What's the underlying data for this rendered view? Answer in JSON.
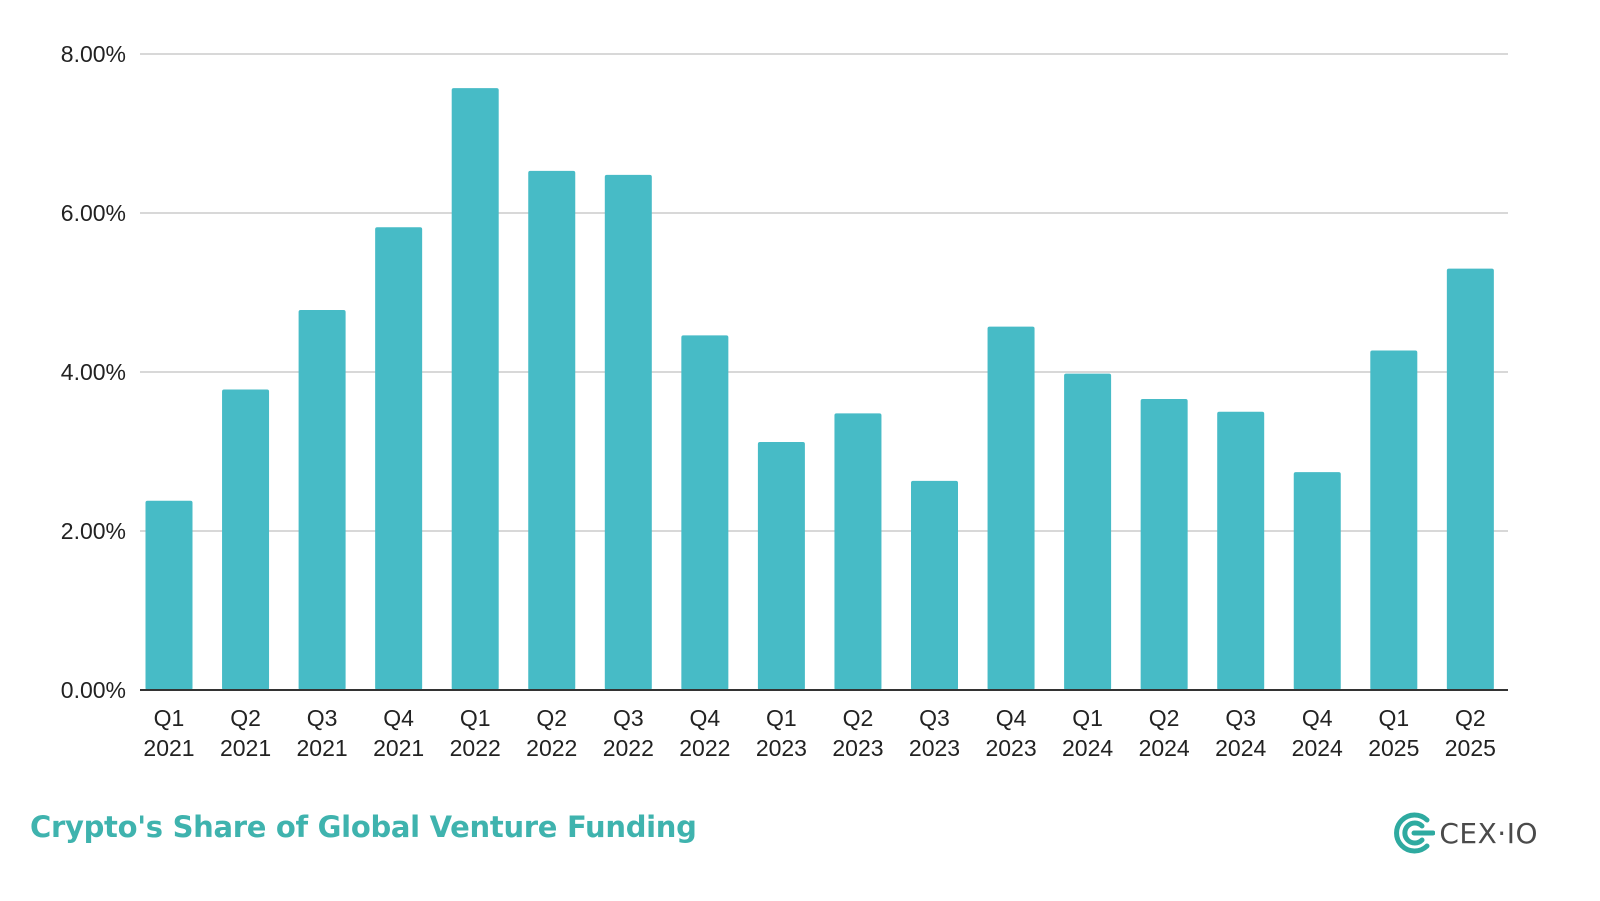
{
  "colors": {
    "bar": "#47bbc6",
    "title": "#3fb3ae",
    "brand_mark": "#2eaaa0",
    "grid": "#cccccc",
    "axis": "#333333"
  },
  "chart_data": {
    "type": "bar",
    "title": "",
    "xlabel": "",
    "ylabel": "",
    "ylim": [
      0,
      8
    ],
    "y_ticks": [
      0,
      2,
      4,
      6,
      8
    ],
    "y_tick_labels": [
      "0.00%",
      "2.00%",
      "4.00%",
      "6.00%",
      "8.00%"
    ],
    "grid": true,
    "legend": "none",
    "categories": [
      [
        "Q1",
        "2021"
      ],
      [
        "Q2",
        "2021"
      ],
      [
        "Q3",
        "2021"
      ],
      [
        "Q4",
        "2021"
      ],
      [
        "Q1",
        "2022"
      ],
      [
        "Q2",
        "2022"
      ],
      [
        "Q3",
        "2022"
      ],
      [
        "Q4",
        "2022"
      ],
      [
        "Q1",
        "2023"
      ],
      [
        "Q2",
        "2023"
      ],
      [
        "Q3",
        "2023"
      ],
      [
        "Q4",
        "2023"
      ],
      [
        "Q1",
        "2024"
      ],
      [
        "Q2",
        "2024"
      ],
      [
        "Q3",
        "2024"
      ],
      [
        "Q4",
        "2024"
      ],
      [
        "Q1",
        "2025"
      ],
      [
        "Q2",
        "2025"
      ]
    ],
    "values": [
      2.38,
      3.78,
      4.78,
      5.82,
      7.57,
      6.53,
      6.48,
      4.46,
      3.12,
      3.48,
      2.63,
      4.57,
      3.98,
      3.66,
      3.5,
      2.74,
      4.27,
      5.3
    ]
  },
  "footer": {
    "title": "Crypto's Share of Global Venture Funding",
    "brand_name": "CEX·IO",
    "brand_icon": "cex-io-logo-icon"
  }
}
